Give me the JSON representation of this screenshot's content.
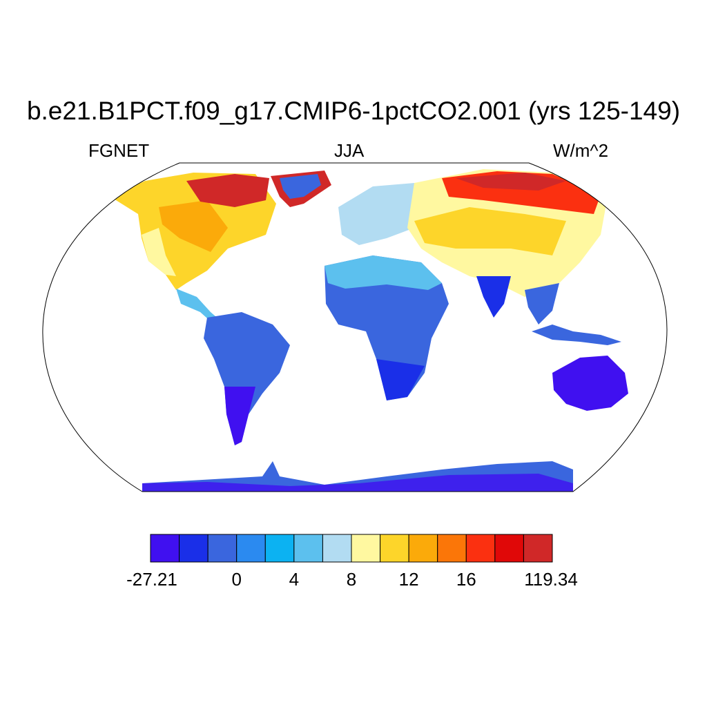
{
  "title": "b.e21.B1PCT.f09_g17.CMIP6-1pctCO2.001 (yrs 125-149)",
  "subtitle_left": "FGNET",
  "subtitle_center": "JJA",
  "subtitle_right": "W/m^2",
  "colorbar": {
    "colors": [
      "#4010f0",
      "#1a2fe8",
      "#3a66de",
      "#2b8af0",
      "#0cb2f2",
      "#5cc0ee",
      "#b2dcf2",
      "#fff8a0",
      "#fdd52a",
      "#fbaa0a",
      "#fb7608",
      "#fb3010",
      "#e00808",
      "#d02828"
    ],
    "labels": [
      "-27.21",
      "0",
      "4",
      "8",
      "12",
      "16",
      "119.34"
    ]
  }
}
